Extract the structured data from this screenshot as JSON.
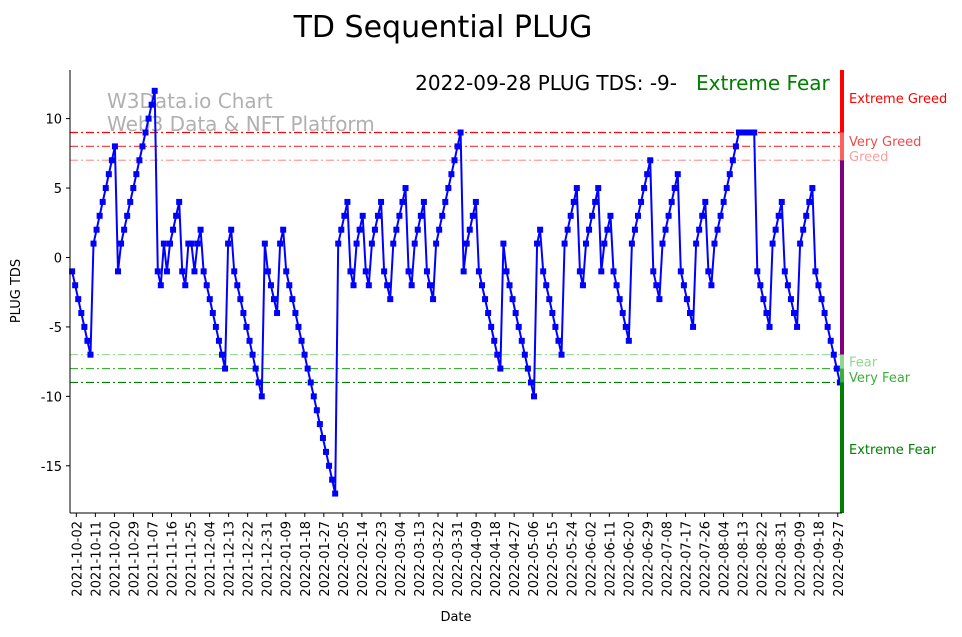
{
  "chart_data": {
    "type": "line",
    "title": "TD Sequential PLUG",
    "xlabel": "Date",
    "ylabel": "PLUG TDS",
    "ylim": [
      -18.4,
      13.5
    ],
    "xlim": [
      "2021-09-29",
      "2022-09-29"
    ],
    "yticks": [
      -15,
      -10,
      -5,
      0,
      5,
      10
    ],
    "xticks": [
      "2021-10-02",
      "2021-10-11",
      "2021-10-20",
      "2021-10-29",
      "2021-11-07",
      "2021-11-16",
      "2021-11-25",
      "2021-12-04",
      "2021-12-13",
      "2021-12-22",
      "2021-12-31",
      "2022-01-09",
      "2022-01-18",
      "2022-01-27",
      "2022-02-05",
      "2022-02-14",
      "2022-02-23",
      "2022-03-04",
      "2022-03-13",
      "2022-03-22",
      "2022-03-31",
      "2022-04-09",
      "2022-04-18",
      "2022-04-27",
      "2022-05-06",
      "2022-05-15",
      "2022-05-24",
      "2022-06-02",
      "2022-06-11",
      "2022-06-20",
      "2022-06-29",
      "2022-07-08",
      "2022-07-17",
      "2022-07-26",
      "2022-08-04",
      "2022-08-13",
      "2022-08-22",
      "2022-08-31",
      "2022-09-09",
      "2022-09-18",
      "2022-09-27"
    ],
    "series": [
      {
        "name": "PLUG TDS",
        "color": "#0000ff",
        "start_date": "2021-09-30",
        "end_date": "2022-09-28",
        "values": [
          -1,
          -2,
          -3,
          -4,
          -5,
          -6,
          -7,
          1,
          2,
          3,
          4,
          5,
          6,
          7,
          8,
          -1,
          1,
          2,
          3,
          4,
          5,
          6,
          7,
          8,
          9,
          10,
          11,
          12,
          -1,
          -2,
          1,
          -1,
          1,
          2,
          3,
          4,
          -1,
          -2,
          1,
          1,
          -1,
          1,
          2,
          -1,
          -2,
          -3,
          -4,
          -5,
          -6,
          -7,
          -8,
          1,
          2,
          -1,
          -2,
          -3,
          -4,
          -5,
          -6,
          -7,
          -8,
          -9,
          -10,
          1,
          -1,
          -2,
          -3,
          -4,
          1,
          2,
          -1,
          -2,
          -3,
          -4,
          -5,
          -6,
          -7,
          -8,
          -9,
          -10,
          -11,
          -12,
          -13,
          -14,
          -15,
          -16,
          -17,
          1,
          2,
          3,
          4,
          -1,
          -2,
          1,
          2,
          3,
          -1,
          -2,
          1,
          2,
          3,
          4,
          -1,
          -2,
          -3,
          1,
          2,
          3,
          4,
          5,
          -1,
          -2,
          1,
          2,
          3,
          4,
          -1,
          -2,
          -3,
          1,
          2,
          3,
          4,
          5,
          6,
          7,
          8,
          9,
          -1,
          1,
          2,
          3,
          4,
          -1,
          -2,
          -3,
          -4,
          -5,
          -6,
          -7,
          -8,
          1,
          -1,
          -2,
          -3,
          -4,
          -5,
          -6,
          -7,
          -8,
          -9,
          -10,
          1,
          2,
          -1,
          -2,
          -3,
          -4,
          -5,
          -6,
          -7,
          1,
          2,
          3,
          4,
          5,
          -1,
          -2,
          1,
          2,
          3,
          4,
          5,
          -1,
          1,
          2,
          3,
          -1,
          -2,
          -3,
          -4,
          -5,
          -6,
          1,
          2,
          3,
          4,
          5,
          6,
          7,
          -1,
          -2,
          -3,
          1,
          2,
          3,
          4,
          5,
          6,
          -1,
          -2,
          -3,
          -4,
          -5,
          1,
          2,
          3,
          4,
          -1,
          -2,
          1,
          2,
          3,
          4,
          5,
          6,
          7,
          8,
          9,
          9,
          9,
          9,
          9,
          9,
          -1,
          -2,
          -3,
          -4,
          -5,
          1,
          2,
          3,
          4,
          -1,
          -2,
          -3,
          -4,
          -5,
          1,
          2,
          3,
          4,
          5,
          -1,
          -2,
          -3,
          -4,
          -5,
          -6,
          -7,
          -8,
          -9
        ]
      }
    ],
    "thresholds": [
      {
        "value": 9,
        "color": "#ff0000"
      },
      {
        "value": 8,
        "color": "#f04a4a"
      },
      {
        "value": 7,
        "color": "#f7a0a0"
      },
      {
        "value": -7,
        "color": "#90d890"
      },
      {
        "value": -8,
        "color": "#3cb03c"
      },
      {
        "value": -9,
        "color": "#008000"
      }
    ],
    "zone_labels": [
      {
        "text": "Extreme Greed",
        "value": 11.5,
        "color": "#ff0000"
      },
      {
        "text": "Very Greed",
        "value": 8.4,
        "color": "#f04a4a"
      },
      {
        "text": "Greed",
        "value": 7.3,
        "color": "#f7a0a0"
      },
      {
        "text": "Fear",
        "value": -7.5,
        "color": "#90d890"
      },
      {
        "text": "Very Fear",
        "value": -8.6,
        "color": "#3cb03c"
      },
      {
        "text": "Extreme Fear",
        "value": -13.8,
        "color": "#008000"
      }
    ],
    "zone_bar": [
      {
        "from": 13.5,
        "to": 9,
        "color": "#ff0000"
      },
      {
        "from": 9,
        "to": 7,
        "color": "#ff6060"
      },
      {
        "from": 7,
        "to": -7,
        "color": "#800080"
      },
      {
        "from": -7,
        "to": -8,
        "color": "#90d890"
      },
      {
        "from": -8,
        "to": -9,
        "color": "#3cb03c"
      },
      {
        "from": -9,
        "to": -18.4,
        "color": "#008000"
      }
    ],
    "annotation": {
      "text": "2022-09-28 PLUG TDS: -9-",
      "status": "Extreme Fear",
      "status_color": "#008000"
    },
    "watermark": [
      "W3Data.io Chart",
      "Web3 Data & NFT Platform"
    ]
  }
}
